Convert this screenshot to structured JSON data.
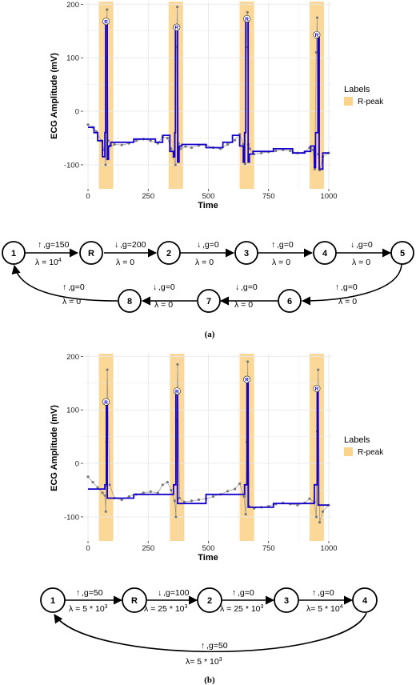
{
  "chart_data": [
    {
      "type": "line",
      "panel": "a",
      "ylabel": "ECG Amplitude (mV)",
      "xlabel": "Time",
      "xlim": [
        -20,
        1010
      ],
      "ylim": [
        -145,
        205
      ],
      "xticks": [
        0,
        250,
        500,
        750,
        1000
      ],
      "yticks": [
        -100,
        0,
        100,
        200
      ],
      "grid": true,
      "legend": {
        "title": "Labels",
        "entries": [
          "R-peak"
        ],
        "position": "right"
      },
      "rpeak_bands": [
        [
          45,
          105
        ],
        [
          335,
          395
        ],
        [
          630,
          690
        ],
        [
          920,
          980
        ]
      ],
      "rpeak_markers": [
        {
          "x": 75,
          "y": 168,
          "label": "R"
        },
        {
          "x": 368,
          "y": 157,
          "label": "R"
        },
        {
          "x": 660,
          "y": 173,
          "label": "R"
        },
        {
          "x": 950,
          "y": 143,
          "label": "R"
        }
      ],
      "series": [
        {
          "role": "fitted-steps",
          "x": [
            0,
            25,
            25,
            40,
            40,
            60,
            60,
            70,
            70,
            73,
            73,
            80,
            80,
            85,
            85,
            95,
            95,
            190,
            190,
            280,
            280,
            310,
            310,
            340,
            340,
            355,
            355,
            360,
            360,
            363,
            363,
            372,
            372,
            378,
            378,
            390,
            390,
            490,
            490,
            560,
            560,
            600,
            600,
            630,
            630,
            645,
            645,
            650,
            650,
            655,
            655,
            665,
            665,
            670,
            670,
            685,
            685,
            770,
            770,
            850,
            850,
            900,
            900,
            925,
            925,
            940,
            940,
            945,
            945,
            955,
            955,
            960,
            960,
            975,
            975,
            1000
          ],
          "y": [
            -30,
            -30,
            -40,
            -40,
            -55,
            -55,
            -85,
            -85,
            -40,
            -40,
            165,
            165,
            -90,
            -90,
            -65,
            -65,
            -58,
            -58,
            -52,
            -52,
            -58,
            -58,
            -45,
            -45,
            -75,
            -75,
            -85,
            -85,
            -40,
            -40,
            155,
            155,
            -95,
            -95,
            -65,
            -65,
            -62,
            -62,
            -68,
            -68,
            -58,
            -58,
            -45,
            -45,
            -65,
            -65,
            -95,
            -95,
            -40,
            -40,
            172,
            172,
            -95,
            -95,
            -80,
            -80,
            -75,
            -75,
            -70,
            -70,
            -78,
            -78,
            -75,
            -75,
            -65,
            -65,
            -105,
            -105,
            -40,
            -40,
            140,
            140,
            -108,
            -108,
            -78,
            -78
          ]
        },
        {
          "role": "raw-signal",
          "x": [
            0,
            20,
            35,
            55,
            68,
            73,
            76,
            79,
            84,
            90,
            110,
            140,
            170,
            200,
            230,
            260,
            290,
            310,
            330,
            345,
            355,
            363,
            367,
            371,
            376,
            385,
            405,
            430,
            460,
            490,
            520,
            550,
            580,
            610,
            630,
            645,
            652,
            658,
            662,
            666,
            672,
            690,
            720,
            750,
            780,
            810,
            840,
            870,
            900,
            920,
            935,
            942,
            948,
            952,
            956,
            962,
            975,
            1000
          ],
          "y": [
            -25,
            -30,
            -38,
            -55,
            -72,
            -100,
            100,
            190,
            -55,
            -65,
            -62,
            -63,
            -60,
            -55,
            -52,
            -55,
            -60,
            -48,
            -50,
            -70,
            -85,
            -100,
            120,
            195,
            -60,
            -70,
            -66,
            -68,
            -64,
            -63,
            -68,
            -70,
            -62,
            -54,
            -43,
            -62,
            -98,
            120,
            185,
            -62,
            -70,
            -80,
            -78,
            -76,
            -74,
            -72,
            -74,
            -78,
            -76,
            -68,
            -72,
            -108,
            110,
            175,
            -80,
            -110,
            -85,
            -78
          ]
        }
      ]
    },
    {
      "type": "line",
      "panel": "b",
      "ylabel": "ECG Amplitude (mV)",
      "xlabel": "Time",
      "xlim": [
        -20,
        1010
      ],
      "ylim": [
        -145,
        205
      ],
      "xticks": [
        0,
        250,
        500,
        750,
        1000
      ],
      "yticks": [
        -100,
        0,
        100,
        200
      ],
      "grid": true,
      "legend": {
        "title": "Labels",
        "entries": [
          "R-peak"
        ],
        "position": "right"
      },
      "rpeak_bands": [
        [
          45,
          105
        ],
        [
          340,
          400
        ],
        [
          630,
          690
        ],
        [
          920,
          980
        ]
      ],
      "rpeak_markers": [
        {
          "x": 75,
          "y": 115,
          "label": "R"
        },
        {
          "x": 370,
          "y": 135,
          "label": "R"
        },
        {
          "x": 660,
          "y": 157,
          "label": "R"
        },
        {
          "x": 950,
          "y": 140,
          "label": "R"
        }
      ],
      "series": [
        {
          "role": "fitted-steps",
          "x": [
            0,
            70,
            70,
            76,
            76,
            80,
            80,
            190,
            190,
            355,
            355,
            365,
            365,
            372,
            372,
            490,
            490,
            650,
            650,
            660,
            660,
            665,
            665,
            770,
            770,
            940,
            940,
            952,
            952,
            956,
            956,
            1000
          ],
          "y": [
            -48,
            -48,
            -40,
            -40,
            115,
            115,
            -65,
            -65,
            -58,
            -58,
            -40,
            -40,
            132,
            132,
            -75,
            -75,
            -58,
            -58,
            -40,
            -40,
            155,
            155,
            -82,
            -82,
            -75,
            -75,
            -40,
            -40,
            138,
            138,
            -78,
            -78
          ]
        },
        {
          "role": "raw-signal",
          "x": [
            0,
            20,
            40,
            60,
            70,
            74,
            77,
            80,
            90,
            110,
            140,
            170,
            200,
            230,
            260,
            290,
            310,
            330,
            345,
            360,
            365,
            369,
            372,
            380,
            400,
            430,
            460,
            490,
            520,
            550,
            580,
            610,
            630,
            648,
            655,
            660,
            663,
            670,
            690,
            720,
            750,
            780,
            810,
            840,
            870,
            900,
            920,
            940,
            948,
            952,
            956,
            962,
            975,
            1000
          ],
          "y": [
            -25,
            -35,
            -45,
            -55,
            -60,
            -90,
            40,
            175,
            -40,
            -65,
            -68,
            -62,
            -58,
            -55,
            -53,
            -55,
            -40,
            -35,
            -50,
            -70,
            -100,
            80,
            185,
            -65,
            -72,
            -70,
            -68,
            -66,
            -62,
            -58,
            -52,
            -48,
            -38,
            -62,
            -95,
            40,
            190,
            -80,
            -84,
            -82,
            -80,
            -76,
            -74,
            -76,
            -78,
            -74,
            -66,
            -72,
            -100,
            60,
            175,
            -110,
            -90,
            -78
          ]
        }
      ]
    }
  ],
  "diagram_a": {
    "caption": "(a)",
    "nodes": [
      "1",
      "R",
      "2",
      "3",
      "4",
      "5",
      "6",
      "7",
      "8"
    ],
    "edges": [
      {
        "g": ",g=150",
        "lambda": "λ = 10",
        "sup": "4"
      },
      {
        "g": ",g=200",
        "lambda": "λ = 0"
      },
      {
        "g": ",g=0",
        "lambda": "λ = 0"
      },
      {
        "g": ",g=0",
        "lambda": "λ = 0"
      },
      {
        "g": ",g=0",
        "lambda": "λ = 0"
      },
      {
        "g": ",g=0",
        "lambda": "λ = 0"
      },
      {
        "g": ",g=0",
        "lambda": "λ = 0"
      },
      {
        "g": ",g=0",
        "lambda": "λ = 0"
      },
      {
        "g": ",g=0",
        "lambda": "λ = 0"
      }
    ]
  },
  "diagram_b": {
    "caption": "(b)",
    "nodes": [
      "1",
      "R",
      "2",
      "3",
      "4"
    ],
    "edges": [
      {
        "g": ",g=50",
        "lambda": "λ = 5 * 10",
        "sup": "3"
      },
      {
        "g": ",g=100",
        "lambda": "λ = 25 * 10",
        "sup": "3"
      },
      {
        "g": ",g=0",
        "lambda": "λ = 25 * 10",
        "sup": "3"
      },
      {
        "g": ",g=0",
        "lambda": "λ= 5 * 10",
        "sup": "4"
      },
      {
        "g": ",g=50",
        "lambda": "λ= 5 * 10",
        "sup": "3"
      }
    ]
  },
  "colors": {
    "band": "#fbd38d",
    "fit": "#1400cc",
    "raw": "#7a7a7a",
    "grid": "#e8e8e8"
  }
}
